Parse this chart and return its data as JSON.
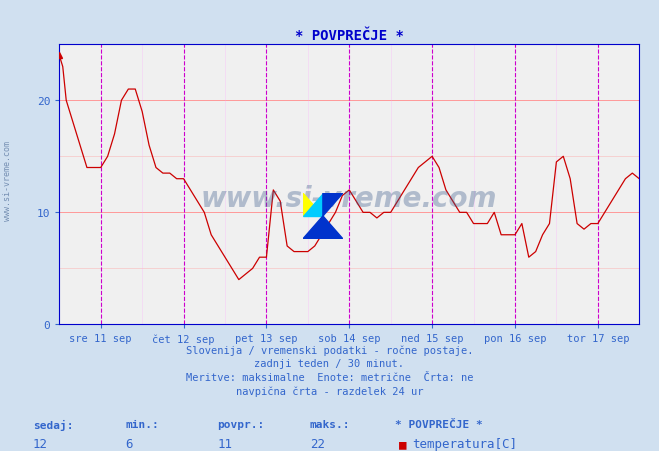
{
  "title": "* POVPREČJE *",
  "bg_color": "#d0e0f0",
  "plot_bg_color": "#f0f0f0",
  "line_color": "#cc0000",
  "grid_color_h": "#ff9999",
  "grid_color_v": "#ff99ff",
  "dashed_vline_color": "#cc00cc",
  "axis_color": "#0000cc",
  "text_color": "#3366cc",
  "ylabel_ticks": [
    0,
    10,
    20
  ],
  "ylim": [
    0,
    25
  ],
  "xlim": [
    0,
    336
  ],
  "subtitle1": "Slovenija / vremenski podatki - ročne postaje.",
  "subtitle2": "zadnji teden / 30 minut.",
  "subtitle3": "Meritve: maksimalne  Enote: metrične  Črta: ne",
  "subtitle4": "navpična črta - razdelek 24 ur",
  "label_sedaj": "sedaj:",
  "label_min": "min.:",
  "label_povpr": "povpr.:",
  "label_maks": "maks.:",
  "label_legend": "* POVPREČJE *",
  "label_temp": "temperatura[C]",
  "val_sedaj": "12",
  "val_min": "6",
  "val_povpr": "11",
  "val_maks": "22",
  "x_tick_labels": [
    "sre 11 sep",
    "čet 12 sep",
    "pet 13 sep",
    "sob 14 sep",
    "ned 15 sep",
    "pon 16 sep",
    "tor 17 sep"
  ],
  "x_tick_positions": [
    24,
    72,
    120,
    168,
    216,
    264,
    312
  ],
  "dashed_vline_positions": [
    24,
    72,
    120,
    168,
    216,
    264,
    312
  ],
  "watermark": "www.si-vreme.com"
}
